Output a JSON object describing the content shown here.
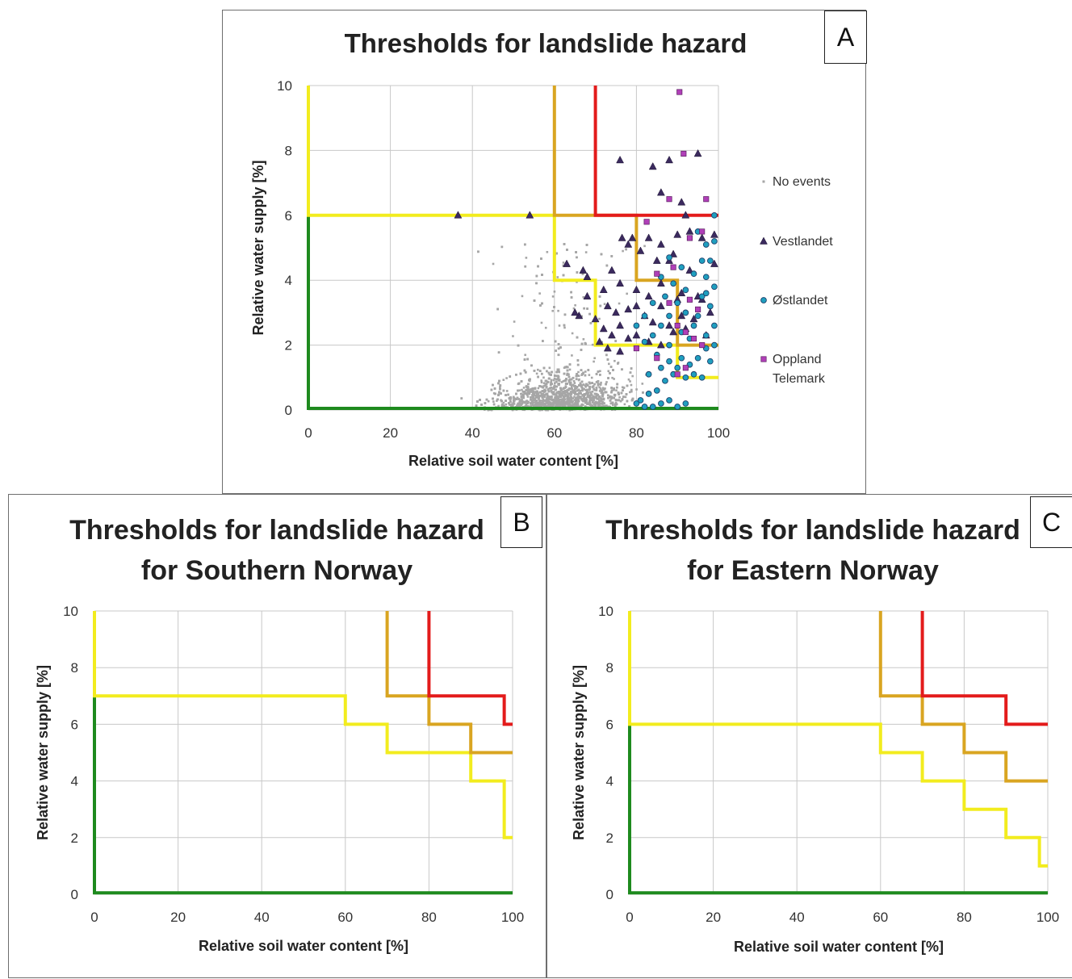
{
  "chart_data": [
    {
      "panel": "A",
      "type": "scatter",
      "title": "Thresholds for landslide hazard",
      "xlabel": "Relative soil water content [%]",
      "ylabel": "Relative water supply [%]",
      "xlim": [
        0,
        100
      ],
      "ylim": [
        0,
        10
      ],
      "xticks": [
        "0",
        "20",
        "40",
        "60",
        "80",
        "100"
      ],
      "yticks": [
        "0",
        "2",
        "4",
        "6",
        "8",
        "10"
      ],
      "grid": true,
      "legend_position": "right",
      "legend": [
        {
          "name": "No events",
          "marker": "dot",
          "color": "#a6a6a6"
        },
        {
          "name": "Vestlandet",
          "marker": "triangle",
          "color": "#3b2a5e"
        },
        {
          "name": "Østlandet",
          "marker": "circle",
          "color": "#1f9fbf"
        },
        {
          "name": "Oppland\nTelemark",
          "marker": "square",
          "color": "#b03fb8"
        }
      ],
      "thresholds": [
        {
          "color": "#1e8a1e",
          "points": [
            [
              0,
              6
            ],
            [
              0,
              0.05
            ],
            [
              100,
              0.05
            ]
          ]
        },
        {
          "color": "#f2ec1e",
          "points": [
            [
              0,
              10
            ],
            [
              0,
              6
            ],
            [
              60,
              6
            ],
            [
              60,
              4
            ],
            [
              70,
              4
            ],
            [
              70,
              2
            ],
            [
              90,
              2
            ],
            [
              90,
              1
            ],
            [
              100,
              1
            ]
          ]
        },
        {
          "color": "#d9a521",
          "points": [
            [
              60,
              10
            ],
            [
              60,
              6
            ],
            [
              80,
              6
            ],
            [
              80,
              4
            ],
            [
              90,
              4
            ],
            [
              90,
              2
            ],
            [
              100,
              2
            ]
          ]
        },
        {
          "color": "#e31b1b",
          "points": [
            [
              70,
              10
            ],
            [
              70,
              6
            ],
            [
              100,
              6
            ]
          ]
        }
      ],
      "series": [
        {
          "name": "Vestlandet",
          "marker": "triangle",
          "color": "#3b2a5e",
          "points": [
            [
              36.5,
              6
            ],
            [
              54,
              6
            ],
            [
              76,
              7.7
            ],
            [
              84,
              7.5
            ],
            [
              88,
              7.7
            ],
            [
              95,
              7.9
            ],
            [
              86,
              6.7
            ],
            [
              91,
              6.4
            ],
            [
              92,
              6
            ],
            [
              76.5,
              5.3
            ],
            [
              78,
              5.1
            ],
            [
              79,
              5.3
            ],
            [
              90,
              5.4
            ],
            [
              93,
              5.5
            ],
            [
              96,
              5.3
            ],
            [
              99,
              5.4
            ],
            [
              83,
              5.3
            ],
            [
              86,
              5.1
            ],
            [
              81,
              4.9
            ],
            [
              85,
              4.6
            ],
            [
              89,
              4.8
            ],
            [
              63,
              4.5
            ],
            [
              67,
              4.3
            ],
            [
              68,
              4.1
            ],
            [
              74,
              4.3
            ],
            [
              76,
              3.9
            ],
            [
              72,
              3.7
            ],
            [
              80,
              3.7
            ],
            [
              83,
              3.5
            ],
            [
              86,
              3.9
            ],
            [
              88,
              4.6
            ],
            [
              91,
              3.6
            ],
            [
              93,
              4.3
            ],
            [
              96,
              3.4
            ],
            [
              99,
              4.5
            ],
            [
              73,
              3.2
            ],
            [
              75,
              3.0
            ],
            [
              78,
              3.1
            ],
            [
              80,
              3.2
            ],
            [
              82,
              2.9
            ],
            [
              84,
              2.7
            ],
            [
              86,
              3.2
            ],
            [
              88,
              2.6
            ],
            [
              90,
              3.4
            ],
            [
              92,
              2.5
            ],
            [
              94,
              2.8
            ],
            [
              97,
              2.3
            ],
            [
              66,
              2.9
            ],
            [
              70,
              2.8
            ],
            [
              72,
              2.5
            ],
            [
              74,
              2.3
            ],
            [
              76,
              2.6
            ],
            [
              78,
              2.2
            ],
            [
              80,
              2.3
            ],
            [
              83,
              2.1
            ],
            [
              86,
              2.0
            ],
            [
              89,
              2.4
            ],
            [
              91,
              2.9
            ],
            [
              95,
              3.5
            ],
            [
              98,
              3.0
            ],
            [
              71,
              2.1
            ],
            [
              73,
              1.9
            ],
            [
              76,
              1.8
            ],
            [
              68,
              3.5
            ],
            [
              65,
              3.0
            ]
          ]
        },
        {
          "name": "Østlandet",
          "marker": "circle",
          "color": "#1f9fbf",
          "points": [
            [
              99,
              6
            ],
            [
              99,
              5.2
            ],
            [
              98,
              4.6
            ],
            [
              97,
              4.1
            ],
            [
              99,
              3.8
            ],
            [
              96,
              3.5
            ],
            [
              98,
              3.2
            ],
            [
              95,
              2.9
            ],
            [
              99,
              2.6
            ],
            [
              94,
              2.6
            ],
            [
              97,
              2.3
            ],
            [
              93,
              2.2
            ],
            [
              91,
              2.4
            ],
            [
              92,
              3.0
            ],
            [
              90,
              3.3
            ],
            [
              88,
              2.9
            ],
            [
              86,
              2.6
            ],
            [
              84,
              2.3
            ],
            [
              87,
              3.5
            ],
            [
              89,
              3.9
            ],
            [
              92,
              3.7
            ],
            [
              94,
              4.2
            ],
            [
              96,
              4.6
            ],
            [
              97,
              5.1
            ],
            [
              95,
              5.5
            ],
            [
              91,
              4.4
            ],
            [
              88,
              4.7
            ],
            [
              86,
              4.1
            ],
            [
              84,
              3.3
            ],
            [
              82,
              2.9
            ],
            [
              80,
              2.6
            ],
            [
              82,
              2.1
            ],
            [
              85,
              1.7
            ],
            [
              88,
              1.5
            ],
            [
              90,
              1.3
            ],
            [
              92,
              1.0
            ],
            [
              94,
              1.1
            ],
            [
              96,
              1.0
            ],
            [
              98,
              1.5
            ],
            [
              97,
              1.9
            ],
            [
              95,
              1.6
            ],
            [
              93,
              1.4
            ],
            [
              91,
              1.6
            ],
            [
              89,
              1.1
            ],
            [
              87,
              0.9
            ],
            [
              85,
              0.6
            ],
            [
              83,
              0.5
            ],
            [
              81,
              0.3
            ],
            [
              80,
              0.2
            ],
            [
              82,
              0.1
            ],
            [
              84,
              0.1
            ],
            [
              86,
              0.2
            ],
            [
              88,
              0.3
            ],
            [
              90,
              0.1
            ],
            [
              92,
              0.2
            ],
            [
              83,
              1.1
            ],
            [
              86,
              1.3
            ],
            [
              88,
              2.0
            ],
            [
              99,
              2.0
            ],
            [
              97,
              3.6
            ]
          ]
        },
        {
          "name": "Oppland\nTelemark",
          "marker": "square",
          "color": "#b03fb8",
          "points": [
            [
              90.5,
              9.8
            ],
            [
              91.5,
              7.9
            ],
            [
              88,
              6.5
            ],
            [
              97,
              6.5
            ],
            [
              82.5,
              5.8
            ],
            [
              96,
              5.5
            ],
            [
              93,
              5.3
            ],
            [
              85,
              4.2
            ],
            [
              89,
              4.4
            ],
            [
              88,
              3.3
            ],
            [
              93,
              3.4
            ],
            [
              95,
              3.1
            ],
            [
              90,
              2.6
            ],
            [
              92,
              2.4
            ],
            [
              94,
              2.2
            ],
            [
              96,
              2.0
            ],
            [
              80,
              1.9
            ],
            [
              85,
              1.6
            ],
            [
              92,
              1.3
            ],
            [
              90,
              1.1
            ]
          ]
        }
      ]
    },
    {
      "panel": "B",
      "type": "line",
      "title": "Thresholds for landslide hazard\nfor Southern Norway",
      "xlabel": "Relative soil water content [%]",
      "ylabel": "Relative water supply [%]",
      "xlim": [
        0,
        100
      ],
      "ylim": [
        0,
        10
      ],
      "xticks": [
        "0",
        "20",
        "40",
        "60",
        "80",
        "100"
      ],
      "yticks": [
        "0",
        "2",
        "4",
        "6",
        "8",
        "10"
      ],
      "grid": true,
      "thresholds": [
        {
          "color": "#1e8a1e",
          "points": [
            [
              0,
              7
            ],
            [
              0,
              0.05
            ],
            [
              100,
              0.05
            ]
          ]
        },
        {
          "color": "#f2ec1e",
          "points": [
            [
              0,
              10
            ],
            [
              0,
              7
            ],
            [
              60,
              7
            ],
            [
              60,
              6
            ],
            [
              70,
              6
            ],
            [
              70,
              5
            ],
            [
              90,
              5
            ],
            [
              90,
              4
            ],
            [
              98,
              4
            ],
            [
              98,
              2
            ],
            [
              100,
              2
            ]
          ]
        },
        {
          "color": "#d9a521",
          "points": [
            [
              70,
              10
            ],
            [
              70,
              7
            ],
            [
              80,
              7
            ],
            [
              80,
              6
            ],
            [
              90,
              6
            ],
            [
              90,
              5
            ],
            [
              100,
              5
            ]
          ]
        },
        {
          "color": "#e31b1b",
          "points": [
            [
              80,
              10
            ],
            [
              80,
              7
            ],
            [
              98,
              7
            ],
            [
              98,
              6
            ],
            [
              100,
              6
            ]
          ]
        }
      ]
    },
    {
      "panel": "C",
      "type": "line",
      "title": "Thresholds for landslide hazard\nfor Eastern Norway",
      "xlabel": "Relative soil water content [%]",
      "ylabel": "Relative water supply [%]",
      "xlim": [
        0,
        100
      ],
      "ylim": [
        0,
        10
      ],
      "xticks": [
        "0",
        "20",
        "40",
        "60",
        "80",
        "100"
      ],
      "yticks": [
        "0",
        "2",
        "4",
        "6",
        "8",
        "10"
      ],
      "grid": true,
      "thresholds": [
        {
          "color": "#1e8a1e",
          "points": [
            [
              0,
              6
            ],
            [
              0,
              0.05
            ],
            [
              100,
              0.05
            ]
          ]
        },
        {
          "color": "#f2ec1e",
          "points": [
            [
              0,
              10
            ],
            [
              0,
              6
            ],
            [
              60,
              6
            ],
            [
              60,
              5
            ],
            [
              70,
              5
            ],
            [
              70,
              4
            ],
            [
              80,
              4
            ],
            [
              80,
              3
            ],
            [
              90,
              3
            ],
            [
              90,
              2
            ],
            [
              98,
              2
            ],
            [
              98,
              1
            ],
            [
              100,
              1
            ]
          ]
        },
        {
          "color": "#d9a521",
          "points": [
            [
              60,
              10
            ],
            [
              60,
              7
            ],
            [
              70,
              7
            ],
            [
              70,
              6
            ],
            [
              80,
              6
            ],
            [
              80,
              5
            ],
            [
              90,
              5
            ],
            [
              90,
              4
            ],
            [
              100,
              4
            ]
          ]
        },
        {
          "color": "#e31b1b",
          "points": [
            [
              70,
              10
            ],
            [
              70,
              7
            ],
            [
              90,
              7
            ],
            [
              90,
              6
            ],
            [
              100,
              6
            ]
          ]
        }
      ]
    }
  ],
  "panel_labels": {
    "a": "A",
    "b": "B",
    "c": "C"
  }
}
